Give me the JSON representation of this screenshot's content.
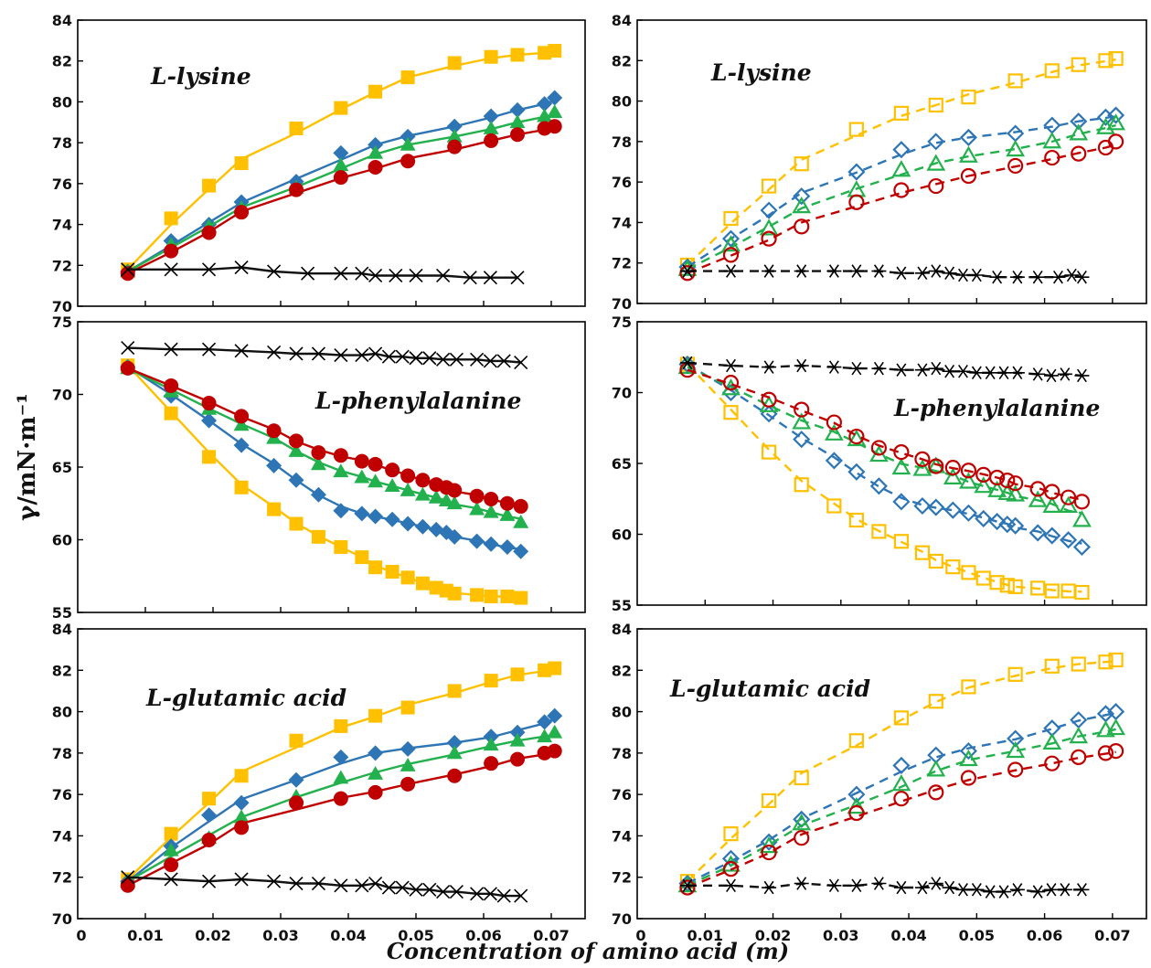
{
  "figure": {
    "y_axis_title": "γ/mN·m⁻¹",
    "x_axis_title": "Concentration of amino acid (m)"
  },
  "colors": {
    "yellow": "#FFC000",
    "blue": "#2E75B6",
    "green": "#22B14C",
    "red": "#C00000",
    "black": "#000000"
  },
  "chart_data": [
    {
      "type": "scatter",
      "title": "L-lysine",
      "panel": "top-left",
      "marker_style": "filled",
      "ylim": [
        70,
        84
      ],
      "yticks": [
        70,
        72,
        74,
        76,
        78,
        80,
        82,
        84
      ],
      "xlim": [
        0,
        0.075
      ],
      "xticks": [],
      "x": [
        0.0074,
        0.0138,
        0.0194,
        0.0242,
        0.0323,
        0.0389,
        0.044,
        0.0488,
        0.0557,
        0.0611,
        0.065,
        0.069,
        0.0705
      ],
      "series": [
        {
          "color": "yellow",
          "marker": "square",
          "fit": "solid",
          "values": [
            71.8,
            74.3,
            75.9,
            77.0,
            78.7,
            79.7,
            80.5,
            81.2,
            81.9,
            82.2,
            82.3,
            82.4,
            82.5
          ]
        },
        {
          "color": "blue",
          "marker": "diamond",
          "fit": "solid",
          "values": [
            71.7,
            73.2,
            74.0,
            75.1,
            76.1,
            77.5,
            77.9,
            78.3,
            78.8,
            79.3,
            79.6,
            79.9,
            80.2
          ]
        },
        {
          "color": "green",
          "marker": "triangle",
          "fit": "solid",
          "values": [
            71.7,
            73.0,
            73.9,
            74.8,
            75.8,
            76.9,
            77.5,
            77.9,
            78.3,
            78.7,
            79.0,
            79.3,
            79.5
          ]
        },
        {
          "color": "red",
          "marker": "circle",
          "fit": "solid",
          "values": [
            71.6,
            72.7,
            73.6,
            74.6,
            75.7,
            76.3,
            76.8,
            77.1,
            77.8,
            78.1,
            78.4,
            78.7,
            78.8
          ]
        },
        {
          "color": "black",
          "marker": "cross",
          "fit": "solid",
          "x": [
            0.0074,
            0.0138,
            0.0194,
            0.0242,
            0.029,
            0.034,
            0.0389,
            0.042,
            0.044,
            0.047,
            0.05,
            0.054,
            0.058,
            0.061,
            0.065
          ],
          "values": [
            71.8,
            71.8,
            71.8,
            71.9,
            71.7,
            71.6,
            71.6,
            71.6,
            71.5,
            71.5,
            71.5,
            71.5,
            71.4,
            71.4,
            71.4
          ]
        }
      ]
    },
    {
      "type": "scatter",
      "title": "L-lysine",
      "panel": "top-right",
      "marker_style": "open",
      "ylim": [
        70,
        84
      ],
      "yticks": [
        70,
        72,
        74,
        76,
        78,
        80,
        82,
        84
      ],
      "xlim": [
        0,
        0.075
      ],
      "xticks": [],
      "x": [
        0.0074,
        0.0138,
        0.0194,
        0.0242,
        0.0323,
        0.0389,
        0.044,
        0.0488,
        0.0557,
        0.0611,
        0.065,
        0.069,
        0.0705
      ],
      "series": [
        {
          "color": "yellow",
          "marker": "square",
          "fit": "dashed",
          "values": [
            71.9,
            74.2,
            75.8,
            76.9,
            78.6,
            79.4,
            79.8,
            80.2,
            81.0,
            81.5,
            81.8,
            82.0,
            82.1
          ]
        },
        {
          "color": "blue",
          "marker": "diamond",
          "fit": "dashed",
          "values": [
            71.8,
            73.2,
            74.6,
            75.3,
            76.5,
            77.6,
            78.0,
            78.2,
            78.4,
            78.8,
            79.0,
            79.2,
            79.3
          ]
        },
        {
          "color": "green",
          "marker": "triangle",
          "fit": "dashed",
          "values": [
            71.7,
            72.9,
            73.7,
            74.8,
            75.6,
            76.6,
            76.9,
            77.3,
            77.6,
            78.0,
            78.4,
            78.7,
            78.9
          ]
        },
        {
          "color": "red",
          "marker": "circle",
          "fit": "dashed",
          "values": [
            71.5,
            72.4,
            73.2,
            73.8,
            75.0,
            75.6,
            75.8,
            76.3,
            76.8,
            77.2,
            77.4,
            77.7,
            78.0
          ]
        },
        {
          "color": "black",
          "marker": "asterisk",
          "fit": "dashed",
          "x": [
            0.0074,
            0.0138,
            0.0194,
            0.0242,
            0.029,
            0.0323,
            0.0356,
            0.0389,
            0.042,
            0.044,
            0.046,
            0.048,
            0.05,
            0.053,
            0.056,
            0.059,
            0.062,
            0.064,
            0.0655
          ],
          "values": [
            71.6,
            71.6,
            71.6,
            71.6,
            71.6,
            71.6,
            71.6,
            71.5,
            71.5,
            71.6,
            71.5,
            71.4,
            71.4,
            71.3,
            71.3,
            71.3,
            71.3,
            71.4,
            71.3
          ]
        }
      ]
    },
    {
      "type": "scatter",
      "title": "L-phenylalanine",
      "panel": "middle-left",
      "marker_style": "filled",
      "ylim": [
        55,
        75
      ],
      "yticks": [
        55,
        60,
        65,
        70,
        75
      ],
      "xlim": [
        0,
        0.075
      ],
      "xticks": [],
      "x": [
        0.0074,
        0.0138,
        0.0194,
        0.0242,
        0.029,
        0.0323,
        0.0356,
        0.0389,
        0.042,
        0.044,
        0.0465,
        0.0488,
        0.051,
        0.053,
        0.0545,
        0.0557,
        0.059,
        0.0611,
        0.0635,
        0.0655
      ],
      "series": [
        {
          "color": "yellow",
          "marker": "square",
          "fit": "solid",
          "values": [
            72.0,
            68.7,
            65.7,
            63.6,
            62.1,
            61.1,
            60.2,
            59.5,
            58.8,
            58.1,
            57.8,
            57.4,
            57.0,
            56.7,
            56.5,
            56.3,
            56.2,
            56.1,
            56.1,
            56.0
          ]
        },
        {
          "color": "blue",
          "marker": "diamond",
          "fit": "solid",
          "values": [
            71.9,
            69.9,
            68.2,
            66.5,
            65.1,
            64.1,
            63.1,
            62.0,
            61.8,
            61.6,
            61.4,
            61.1,
            60.9,
            60.7,
            60.5,
            60.2,
            59.9,
            59.7,
            59.5,
            59.2
          ]
        },
        {
          "color": "green",
          "marker": "triangle",
          "fit": "solid",
          "values": [
            71.8,
            70.2,
            69.0,
            67.9,
            67.0,
            66.1,
            65.2,
            64.7,
            64.3,
            64.0,
            63.7,
            63.4,
            63.1,
            62.9,
            62.7,
            62.5,
            62.1,
            61.9,
            61.7,
            61.2
          ]
        },
        {
          "color": "red",
          "marker": "circle",
          "fit": "solid",
          "values": [
            71.8,
            70.6,
            69.4,
            68.5,
            67.5,
            66.8,
            66.0,
            65.8,
            65.4,
            65.2,
            64.8,
            64.4,
            64.1,
            63.8,
            63.6,
            63.4,
            63.0,
            62.8,
            62.5,
            62.3
          ]
        },
        {
          "color": "black",
          "marker": "cross",
          "fit": "solid",
          "x": [
            0.0074,
            0.0138,
            0.0194,
            0.0242,
            0.029,
            0.0323,
            0.0356,
            0.0389,
            0.042,
            0.044,
            0.046,
            0.048,
            0.05,
            0.052,
            0.054,
            0.056,
            0.059,
            0.061,
            0.063,
            0.0655
          ],
          "values": [
            73.2,
            73.1,
            73.1,
            73.0,
            72.9,
            72.8,
            72.8,
            72.7,
            72.7,
            72.8,
            72.6,
            72.6,
            72.5,
            72.5,
            72.4,
            72.4,
            72.4,
            72.3,
            72.3,
            72.2
          ]
        }
      ]
    },
    {
      "type": "scatter",
      "title": "L-phenylalanine",
      "panel": "middle-right",
      "marker_style": "open",
      "ylim": [
        55,
        75
      ],
      "yticks": [
        55,
        60,
        65,
        70,
        75
      ],
      "xlim": [
        0,
        0.075
      ],
      "xticks": [],
      "x": [
        0.0074,
        0.0138,
        0.0194,
        0.0242,
        0.029,
        0.0323,
        0.0356,
        0.0389,
        0.042,
        0.044,
        0.0465,
        0.0488,
        0.051,
        0.053,
        0.0545,
        0.0557,
        0.059,
        0.0611,
        0.0635,
        0.0655
      ],
      "series": [
        {
          "color": "yellow",
          "marker": "square",
          "fit": "dashed",
          "values": [
            72.0,
            68.6,
            65.8,
            63.5,
            62.0,
            61.0,
            60.2,
            59.5,
            58.7,
            58.1,
            57.7,
            57.3,
            56.9,
            56.6,
            56.4,
            56.3,
            56.2,
            56.0,
            56.0,
            55.9
          ]
        },
        {
          "color": "blue",
          "marker": "diamond",
          "fit": "dashed",
          "values": [
            72.0,
            70.0,
            68.5,
            66.7,
            65.2,
            64.4,
            63.4,
            62.3,
            62.0,
            61.9,
            61.7,
            61.5,
            61.1,
            60.9,
            60.7,
            60.6,
            60.1,
            59.9,
            59.6,
            59.1
          ]
        },
        {
          "color": "green",
          "marker": "triangle",
          "fit": "dashed",
          "values": [
            71.8,
            70.3,
            69.1,
            67.9,
            67.1,
            66.7,
            65.6,
            64.7,
            64.6,
            64.8,
            64.0,
            63.7,
            63.4,
            63.1,
            62.9,
            62.8,
            62.4,
            62.0,
            62.0,
            61.0
          ]
        },
        {
          "color": "red",
          "marker": "circle",
          "fit": "dashed",
          "values": [
            71.6,
            70.7,
            69.5,
            68.8,
            67.9,
            66.9,
            66.1,
            65.8,
            65.3,
            64.8,
            64.7,
            64.5,
            64.2,
            64.0,
            63.8,
            63.6,
            63.2,
            63.0,
            62.6,
            62.3
          ]
        },
        {
          "color": "black",
          "marker": "asterisk",
          "fit": "dashed",
          "x": [
            0.0074,
            0.0138,
            0.0194,
            0.0242,
            0.029,
            0.0323,
            0.0356,
            0.0389,
            0.042,
            0.044,
            0.046,
            0.048,
            0.05,
            0.052,
            0.054,
            0.056,
            0.059,
            0.061,
            0.063,
            0.0655
          ],
          "values": [
            72.1,
            71.9,
            71.8,
            71.9,
            71.8,
            71.7,
            71.7,
            71.6,
            71.6,
            71.7,
            71.5,
            71.5,
            71.4,
            71.4,
            71.4,
            71.4,
            71.3,
            71.2,
            71.3,
            71.2
          ]
        }
      ]
    },
    {
      "type": "scatter",
      "title": "L-glutamic acid",
      "panel": "bottom-left",
      "marker_style": "filled",
      "ylim": [
        70,
        84
      ],
      "yticks": [
        70,
        72,
        74,
        76,
        78,
        80,
        82,
        84
      ],
      "xlim": [
        0,
        0.075
      ],
      "xticks": [
        0,
        0.01,
        0.02,
        0.03,
        0.04,
        0.05,
        0.06,
        0.07
      ],
      "xtick_labels": [
        "0",
        "0.01",
        "0.02",
        "0.03",
        "0.04",
        "0.05",
        "0.06",
        "0.07"
      ],
      "x": [
        0.0074,
        0.0138,
        0.0194,
        0.0242,
        0.0323,
        0.0389,
        0.044,
        0.0488,
        0.0557,
        0.0611,
        0.065,
        0.069,
        0.0705
      ],
      "series": [
        {
          "color": "yellow",
          "marker": "square",
          "fit": "solid",
          "values": [
            71.9,
            74.1,
            75.8,
            76.9,
            78.6,
            79.3,
            79.8,
            80.2,
            81.0,
            81.5,
            81.8,
            82.0,
            82.1
          ]
        },
        {
          "color": "blue",
          "marker": "diamond",
          "fit": "solid",
          "values": [
            71.8,
            73.5,
            75.0,
            75.6,
            76.7,
            77.8,
            78.0,
            78.2,
            78.5,
            78.8,
            79.0,
            79.5,
            79.8
          ]
        },
        {
          "color": "green",
          "marker": "triangle",
          "fit": "solid",
          "values": [
            71.8,
            73.3,
            73.9,
            74.9,
            75.9,
            76.8,
            77.0,
            77.4,
            78.0,
            78.4,
            78.6,
            78.8,
            79.0
          ]
        },
        {
          "color": "red",
          "marker": "circle",
          "fit": "solid",
          "values": [
            71.6,
            72.6,
            73.8,
            74.4,
            75.6,
            75.8,
            76.1,
            76.5,
            76.9,
            77.5,
            77.7,
            78.0,
            78.1
          ]
        },
        {
          "color": "black",
          "marker": "cross",
          "fit": "solid",
          "x": [
            0.0074,
            0.0138,
            0.0194,
            0.0242,
            0.029,
            0.0323,
            0.0356,
            0.0389,
            0.042,
            0.044,
            0.046,
            0.048,
            0.05,
            0.052,
            0.054,
            0.056,
            0.059,
            0.061,
            0.063,
            0.0655
          ],
          "values": [
            72.0,
            71.9,
            71.8,
            71.9,
            71.8,
            71.7,
            71.7,
            71.6,
            71.6,
            71.7,
            71.5,
            71.5,
            71.4,
            71.4,
            71.3,
            71.3,
            71.2,
            71.2,
            71.1,
            71.1
          ]
        }
      ]
    },
    {
      "type": "scatter",
      "title": "L-glutamic acid",
      "panel": "bottom-right",
      "marker_style": "open",
      "ylim": [
        70,
        84
      ],
      "yticks": [
        70,
        72,
        74,
        76,
        78,
        80,
        82,
        84
      ],
      "xlim": [
        0,
        0.075
      ],
      "xticks": [
        0,
        0.01,
        0.02,
        0.03,
        0.04,
        0.05,
        0.06,
        0.07
      ],
      "xtick_labels": [
        "0",
        "0.01",
        "0.02",
        "0.03",
        "0.04",
        "0.05",
        "0.06",
        "0.07"
      ],
      "x": [
        0.0074,
        0.0138,
        0.0194,
        0.0242,
        0.0323,
        0.0389,
        0.044,
        0.0488,
        0.0557,
        0.0611,
        0.065,
        0.069,
        0.0705
      ],
      "series": [
        {
          "color": "yellow",
          "marker": "square",
          "fit": "dashed",
          "values": [
            71.8,
            74.1,
            75.7,
            76.8,
            78.6,
            79.7,
            80.5,
            81.2,
            81.8,
            82.2,
            82.3,
            82.4,
            82.5
          ]
        },
        {
          "color": "blue",
          "marker": "diamond",
          "fit": "dashed",
          "values": [
            71.7,
            72.9,
            73.7,
            74.8,
            76.0,
            77.4,
            77.9,
            78.1,
            78.7,
            79.2,
            79.6,
            79.9,
            80.0
          ]
        },
        {
          "color": "green",
          "marker": "triangle",
          "fit": "dashed",
          "values": [
            71.6,
            72.6,
            73.5,
            74.6,
            75.4,
            76.5,
            77.2,
            77.7,
            78.1,
            78.5,
            78.8,
            79.1,
            79.2
          ]
        },
        {
          "color": "red",
          "marker": "circle",
          "fit": "dashed",
          "values": [
            71.5,
            72.4,
            73.2,
            73.9,
            75.1,
            75.8,
            76.1,
            76.8,
            77.2,
            77.5,
            77.8,
            78.0,
            78.1
          ]
        },
        {
          "color": "black",
          "marker": "asterisk",
          "fit": "dashed",
          "x": [
            0.0074,
            0.0138,
            0.0194,
            0.0242,
            0.029,
            0.0323,
            0.0356,
            0.0389,
            0.042,
            0.044,
            0.046,
            0.048,
            0.05,
            0.052,
            0.054,
            0.056,
            0.059,
            0.061,
            0.063,
            0.0655
          ],
          "values": [
            71.6,
            71.6,
            71.5,
            71.7,
            71.6,
            71.6,
            71.7,
            71.5,
            71.5,
            71.7,
            71.5,
            71.4,
            71.4,
            71.3,
            71.3,
            71.4,
            71.3,
            71.4,
            71.4,
            71.4
          ]
        }
      ]
    }
  ]
}
